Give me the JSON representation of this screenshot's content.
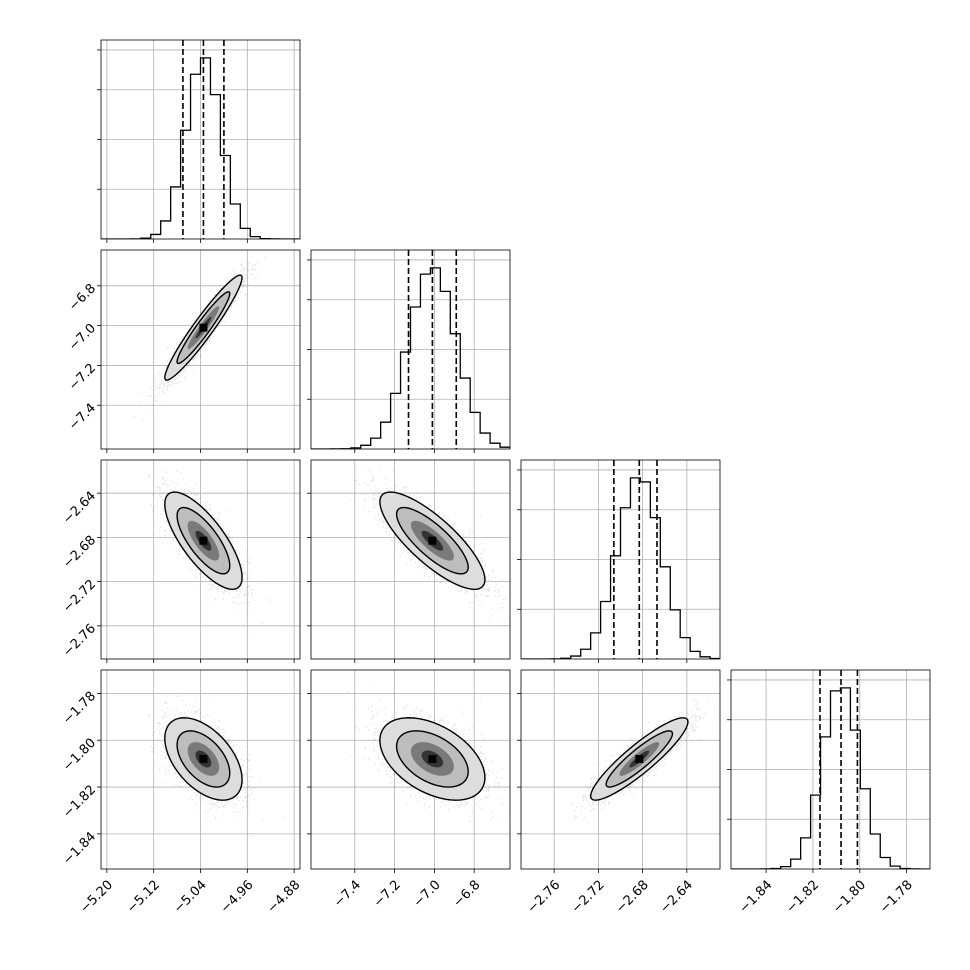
{
  "colors": {
    "frame": "#000000",
    "grid": "#b0b0b0",
    "hist": "#000000",
    "points": "#000000",
    "contour_fill": "#dddddd",
    "contour_dark": "#333333"
  },
  "chart_data": {
    "type": "corner",
    "grid": true,
    "parameters": [
      {
        "range": [
          -5.21,
          -4.87
        ],
        "ticks": [
          -5.2,
          -5.12,
          -5.04,
          -4.96,
          -4.88
        ],
        "tick_labels": [
          "−5.20",
          "−5.12",
          "−5.04",
          "−4.96",
          "−4.88"
        ],
        "quantiles": [
          -5.07,
          -5.035,
          -5.0
        ],
        "mean": -5.035,
        "sd": 0.03
      },
      {
        "range": [
          -7.62,
          -6.62
        ],
        "ticks": [
          -7.4,
          -7.2,
          -7.0,
          -6.8
        ],
        "tick_labels": [
          "−7.4",
          "−7.2",
          "−7.0",
          "−6.8"
        ],
        "quantiles": [
          -7.13,
          -7.01,
          -6.89
        ],
        "mean": -7.01,
        "sd": 0.12
      },
      {
        "range": [
          -2.79,
          -2.61
        ],
        "ticks": [
          -2.76,
          -2.72,
          -2.68,
          -2.64
        ],
        "tick_labels": [
          "−2.76",
          "−2.72",
          "−2.68",
          "−2.64"
        ],
        "quantiles": [
          -2.706,
          -2.683,
          -2.667
        ],
        "mean": -2.683,
        "sd": 0.02
      },
      {
        "range": [
          -1.855,
          -1.77
        ],
        "ticks": [
          -1.84,
          -1.82,
          -1.8,
          -1.78
        ],
        "tick_labels": [
          "−1.84",
          "−1.82",
          "−1.80",
          "−1.78"
        ],
        "quantiles": [
          -1.817,
          -1.808,
          -1.801
        ],
        "mean": -1.808,
        "sd": 0.008
      }
    ],
    "correlations": {
      "1-0": 0.95,
      "2-0": -0.75,
      "2-1": -0.8,
      "3-0": -0.5,
      "3-1": -0.45,
      "3-2": 0.9
    }
  }
}
